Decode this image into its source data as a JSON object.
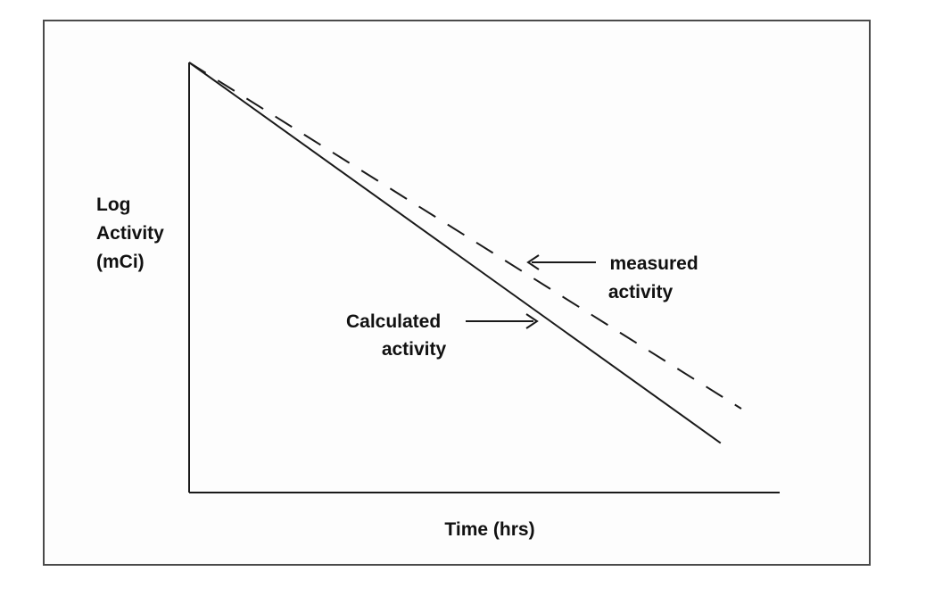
{
  "chart_data": {
    "type": "line",
    "xlabel": "Time (hrs)",
    "ylabel": [
      "Log",
      "Activity",
      "(mCi)"
    ],
    "xlim": [
      0,
      10
    ],
    "ylim": [
      0,
      10
    ],
    "grid": false,
    "series": [
      {
        "key": "calculated",
        "style": "solid",
        "label_lines": [
          "Calculated",
          "activity"
        ],
        "x": [
          0,
          9
        ],
        "y": [
          10,
          1.15
        ]
      },
      {
        "key": "measured",
        "style": "dashed",
        "label_lines": [
          "measured",
          "activity"
        ],
        "x": [
          0,
          9.35
        ],
        "y": [
          10,
          1.95
        ]
      }
    ],
    "colors": {
      "line": "#1a1a1a",
      "text": "#111111"
    }
  }
}
